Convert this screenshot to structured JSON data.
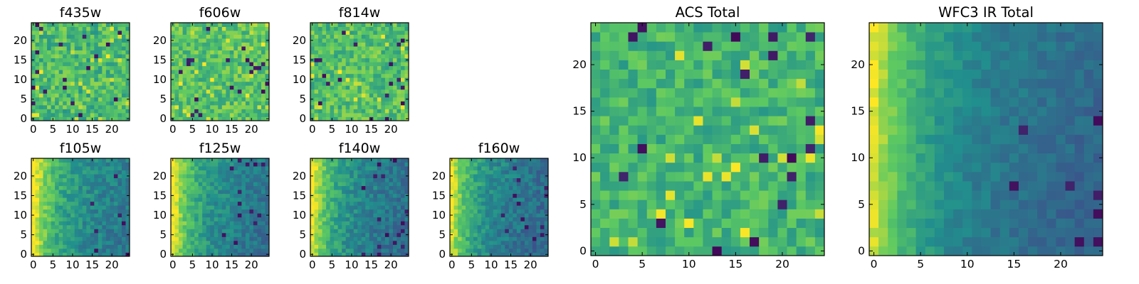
{
  "figure": {
    "colormap": "viridis",
    "colormap_stops": [
      "#440154",
      "#3b528b",
      "#21908d",
      "#5dc962",
      "#fde725"
    ]
  },
  "chart_data": [
    {
      "type": "heatmap",
      "title": "f435w",
      "size": 25,
      "xticks": [
        0,
        5,
        10,
        15,
        20
      ],
      "yticks": [
        0,
        5,
        10,
        15,
        20
      ],
      "xlim": [
        0,
        24
      ],
      "ylim": [
        0,
        24
      ],
      "pattern": "noise",
      "mean_level": 0.68,
      "spread": 0.16,
      "seed": 11
    },
    {
      "type": "heatmap",
      "title": "f606w",
      "size": 25,
      "xticks": [
        0,
        5,
        10,
        15,
        20
      ],
      "yticks": [
        0,
        5,
        10,
        15,
        20
      ],
      "xlim": [
        0,
        24
      ],
      "ylim": [
        0,
        24
      ],
      "pattern": "noise",
      "mean_level": 0.72,
      "spread": 0.15,
      "seed": 23
    },
    {
      "type": "heatmap",
      "title": "f814w",
      "size": 25,
      "xticks": [
        0,
        5,
        10,
        15,
        20
      ],
      "yticks": [
        0,
        5,
        10,
        15,
        20
      ],
      "xlim": [
        0,
        24
      ],
      "ylim": [
        0,
        24
      ],
      "pattern": "noise",
      "mean_level": 0.7,
      "spread": 0.15,
      "seed": 37
    },
    {
      "type": "heatmap",
      "title": "f105w",
      "size": 25,
      "xticks": [
        0,
        5,
        10,
        15,
        20
      ],
      "yticks": [
        0,
        5,
        10,
        15,
        20
      ],
      "xlim": [
        0,
        24
      ],
      "ylim": [
        0,
        24
      ],
      "pattern": "gradient",
      "mean_level": 0.5,
      "spread": 0.1,
      "seed": 41
    },
    {
      "type": "heatmap",
      "title": "f125w",
      "size": 25,
      "xticks": [
        0,
        5,
        10,
        15,
        20
      ],
      "yticks": [
        0,
        5,
        10,
        15,
        20
      ],
      "xlim": [
        0,
        24
      ],
      "ylim": [
        0,
        24
      ],
      "pattern": "gradient",
      "mean_level": 0.48,
      "spread": 0.1,
      "seed": 53
    },
    {
      "type": "heatmap",
      "title": "f140w",
      "size": 25,
      "xticks": [
        0,
        5,
        10,
        15,
        20
      ],
      "yticks": [
        0,
        5,
        10,
        15,
        20
      ],
      "xlim": [
        0,
        24
      ],
      "ylim": [
        0,
        24
      ],
      "pattern": "gradient",
      "mean_level": 0.46,
      "spread": 0.1,
      "seed": 67
    },
    {
      "type": "heatmap",
      "title": "f160w",
      "size": 25,
      "xticks": [
        0,
        5,
        10,
        15,
        20
      ],
      "yticks": [
        0,
        5,
        10,
        15,
        20
      ],
      "xlim": [
        0,
        24
      ],
      "ylim": [
        0,
        24
      ],
      "pattern": "gradient",
      "mean_level": 0.44,
      "spread": 0.1,
      "seed": 79
    },
    {
      "type": "heatmap",
      "title": "ACS Total",
      "size": 25,
      "xticks": [
        0,
        5,
        10,
        15,
        20
      ],
      "yticks": [
        0,
        5,
        10,
        15,
        20
      ],
      "xlim": [
        0,
        24
      ],
      "ylim": [
        0,
        24
      ],
      "pattern": "noise",
      "mean_level": 0.66,
      "spread": 0.13,
      "seed": 97
    },
    {
      "type": "heatmap",
      "title": "WFC3 IR Total",
      "size": 25,
      "xticks": [
        0,
        5,
        10,
        15,
        20
      ],
      "yticks": [
        0,
        5,
        10,
        15,
        20
      ],
      "xlim": [
        0,
        24
      ],
      "ylim": [
        0,
        24
      ],
      "pattern": "gradient",
      "mean_level": 0.42,
      "spread": 0.06,
      "seed": 113
    }
  ]
}
